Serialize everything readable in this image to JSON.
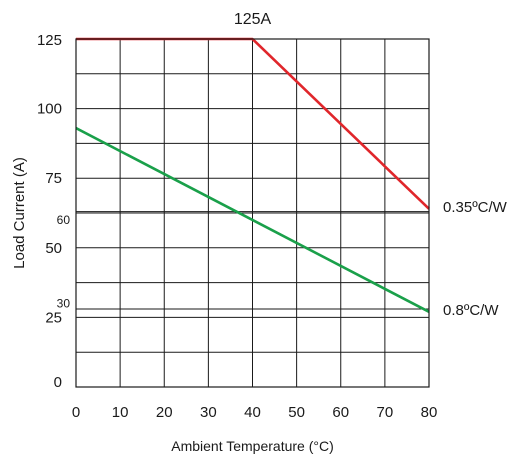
{
  "chart_data": {
    "type": "line",
    "title": "125A",
    "xlabel": "Ambient Temperature (°C)",
    "ylabel": "Load Current (A)",
    "xlim": [
      0,
      80
    ],
    "ylim": [
      0,
      125
    ],
    "x_ticks": [
      "0",
      "10",
      "20",
      "30",
      "40",
      "50",
      "60",
      "70",
      "80"
    ],
    "x_tick_values": [
      0,
      10,
      20,
      30,
      40,
      50,
      60,
      70,
      80
    ],
    "y_ticks": [
      "0",
      "25",
      "50",
      "75",
      "100",
      "125"
    ],
    "y_tick_values": [
      0,
      25,
      50,
      75,
      100,
      125
    ],
    "y_minor_labels": [
      "30",
      "60"
    ],
    "y_minor_values": [
      30,
      60
    ],
    "grid": true,
    "series": [
      {
        "name": "0.35ºC/W",
        "color": "#e0262b",
        "x": [
          0,
          40,
          80
        ],
        "y": [
          125,
          125,
          64
        ]
      },
      {
        "name": "0.8ºC/W",
        "color": "#1aa04a",
        "x": [
          0,
          80
        ],
        "y": [
          93,
          27
        ]
      }
    ],
    "reference_lines": [
      {
        "y": 63
      },
      {
        "y": 28
      }
    ]
  }
}
